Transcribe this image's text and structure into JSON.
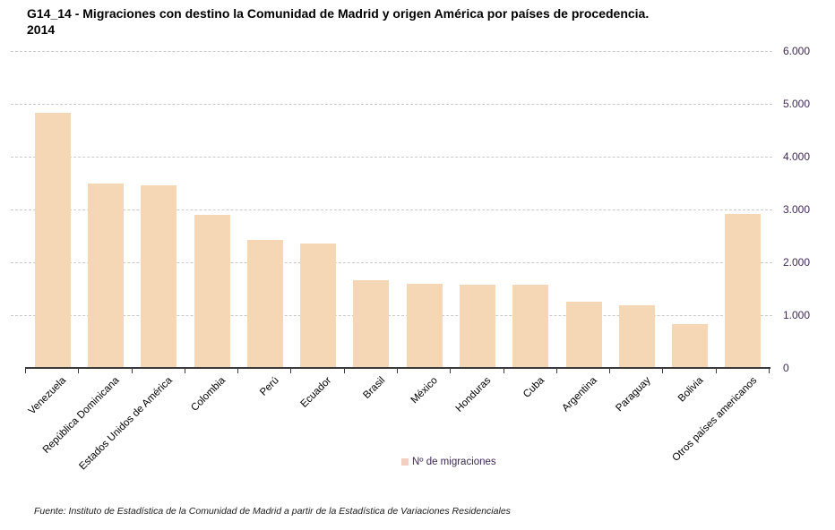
{
  "title": "G14_14 - Migraciones con destino la Comunidad de Madrid y origen América por países de procedencia. 2014",
  "legend": {
    "label": "Nº de migraciones"
  },
  "footer": "Fuente: Instituto de Estadística de la Comunidad de Madrid a partir de la Estadística de Variaciones Residenciales",
  "colors": {
    "bar": "#f5d7b5",
    "legend_swatch": "#f2cfc0",
    "axis_label_text": "#3f2a56",
    "gridline": "#c9c9c9",
    "axis_line": "#3a3a3a"
  },
  "chart_data": {
    "type": "bar",
    "title": "G14_14 - Migraciones con destino la Comunidad de Madrid y origen América por países de procedencia. 2014",
    "categories": [
      "Venezuela",
      "República Dominicana",
      "Estados Unidos de América",
      "Colombia",
      "Perú",
      "Ecuador",
      "Brasil",
      "México",
      "Honduras",
      "Cuba",
      "Argentina",
      "Paraguay",
      "Bolivia",
      "Otros países americanos"
    ],
    "series": [
      {
        "name": "Nº de migraciones",
        "values": [
          4830,
          3500,
          3450,
          2900,
          2420,
          2350,
          1660,
          1590,
          1570,
          1570,
          1260,
          1190,
          830,
          2920
        ]
      }
    ],
    "xlabel": "",
    "ylabel": "",
    "ylim": [
      0,
      6000
    ],
    "ytick_values": [
      0,
      1000,
      2000,
      3000,
      4000,
      5000,
      6000
    ],
    "ytick_labels": [
      "0",
      "1.000",
      "2.000",
      "3.000",
      "4.000",
      "5.000",
      "6.000"
    ],
    "grid": true,
    "gridline_style": "dashed",
    "legend_position": "bottom",
    "x_tick_label_rotation": 45
  }
}
